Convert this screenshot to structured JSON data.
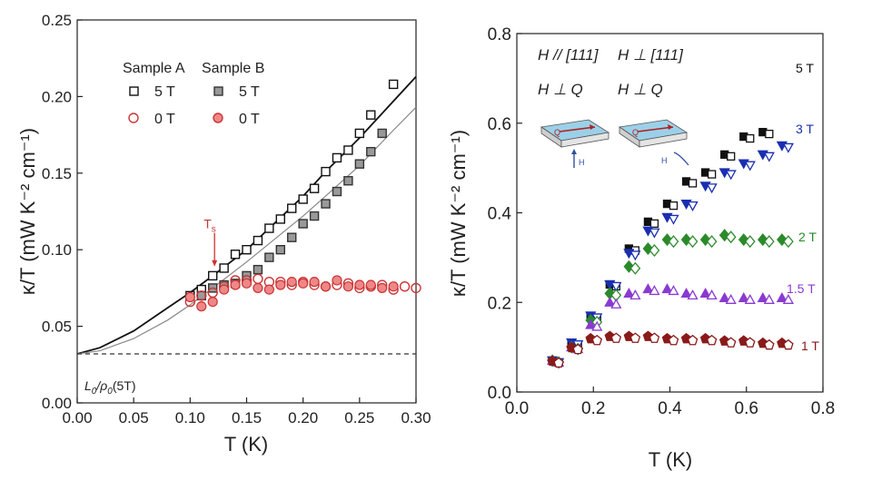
{
  "chart_data": [
    {
      "type": "scatter",
      "panel": "left",
      "xlabel": "T (K)",
      "ylabel": "κ/T (mW K⁻² cm⁻¹)",
      "xlim": [
        0.0,
        0.3
      ],
      "ylim": [
        0.0,
        0.25
      ],
      "xticks": [
        "0.00",
        "0.05",
        "0.10",
        "0.15",
        "0.20",
        "0.25",
        "0.30"
      ],
      "yticks": [
        "0.00",
        "0.05",
        "0.10",
        "0.15",
        "0.20",
        "0.25"
      ],
      "grid": false,
      "legend": {
        "placement": "top-left",
        "headers": [
          "Sample A",
          "Sample B"
        ],
        "rows": [
          "5 T",
          "0 T"
        ]
      },
      "annotations": {
        "ts_label": "T",
        "ts_sub": "s",
        "ts_x": 0.12,
        "baseline_label": "L",
        "baseline_sub": "0",
        "baseline_label2": "/ρ",
        "baseline_sub2": "0",
        "baseline_label3": "(5T)",
        "baseline_y": 0.032
      },
      "fits": [
        {
          "name": "Sample A fit",
          "color": "#111111",
          "x": [
            0.0,
            0.02,
            0.05,
            0.08,
            0.1,
            0.12,
            0.15,
            0.18,
            0.2,
            0.22,
            0.25,
            0.28,
            0.3
          ],
          "y": [
            0.032,
            0.036,
            0.047,
            0.062,
            0.072,
            0.083,
            0.1,
            0.121,
            0.135,
            0.151,
            0.173,
            0.197,
            0.213
          ]
        },
        {
          "name": "Sample B fit",
          "color": "#888888",
          "x": [
            0.0,
            0.02,
            0.05,
            0.08,
            0.1,
            0.12,
            0.15,
            0.18,
            0.2,
            0.22,
            0.25,
            0.28,
            0.3
          ],
          "y": [
            0.032,
            0.034,
            0.042,
            0.054,
            0.064,
            0.075,
            0.092,
            0.11,
            0.122,
            0.135,
            0.155,
            0.178,
            0.193
          ]
        }
      ],
      "series": [
        {
          "name": "Sample A 5 T",
          "marker": "square-open",
          "color": "#111111",
          "x": [
            0.1,
            0.11,
            0.12,
            0.13,
            0.14,
            0.15,
            0.16,
            0.17,
            0.18,
            0.19,
            0.2,
            0.21,
            0.22,
            0.23,
            0.24,
            0.25,
            0.26,
            0.28
          ],
          "y": [
            0.07,
            0.074,
            0.083,
            0.088,
            0.097,
            0.1,
            0.106,
            0.114,
            0.12,
            0.127,
            0.133,
            0.14,
            0.151,
            0.16,
            0.165,
            0.176,
            0.188,
            0.208
          ]
        },
        {
          "name": "Sample B 5 T",
          "marker": "square-gray",
          "color": "#666666",
          "x": [
            0.11,
            0.12,
            0.13,
            0.14,
            0.15,
            0.16,
            0.17,
            0.18,
            0.19,
            0.2,
            0.21,
            0.22,
            0.23,
            0.24,
            0.25,
            0.26,
            0.27
          ],
          "y": [
            0.07,
            0.075,
            0.077,
            0.078,
            0.083,
            0.087,
            0.095,
            0.1,
            0.108,
            0.117,
            0.122,
            0.13,
            0.138,
            0.145,
            0.156,
            0.164,
            0.176
          ]
        },
        {
          "name": "Sample A 0 T",
          "marker": "circle-open",
          "color": "#cc3333",
          "x": [
            0.1,
            0.11,
            0.12,
            0.13,
            0.14,
            0.15,
            0.16,
            0.17,
            0.18,
            0.19,
            0.2,
            0.21,
            0.22,
            0.23,
            0.24,
            0.25,
            0.26,
            0.27,
            0.28,
            0.29,
            0.3
          ],
          "y": [
            0.066,
            0.07,
            0.072,
            0.076,
            0.08,
            0.08,
            0.081,
            0.079,
            0.079,
            0.077,
            0.079,
            0.077,
            0.076,
            0.077,
            0.078,
            0.075,
            0.076,
            0.077,
            0.074,
            0.076,
            0.075
          ]
        },
        {
          "name": "Sample B 0 T",
          "marker": "circle-filled",
          "color": "#dd5555",
          "x": [
            0.1,
            0.11,
            0.12,
            0.13,
            0.14,
            0.15,
            0.16,
            0.17,
            0.18,
            0.19,
            0.2,
            0.21,
            0.22,
            0.23,
            0.24,
            0.25,
            0.26,
            0.27,
            0.28
          ],
          "y": [
            0.069,
            0.063,
            0.066,
            0.074,
            0.077,
            0.078,
            0.075,
            0.074,
            0.077,
            0.079,
            0.078,
            0.079,
            0.076,
            0.08,
            0.076,
            0.077,
            0.077,
            0.075,
            0.076
          ]
        }
      ]
    },
    {
      "type": "scatter",
      "panel": "right",
      "xlabel": "T (K)",
      "ylabel": "κ/T (mW K⁻² cm⁻¹)",
      "xlim": [
        0.0,
        0.8
      ],
      "ylim": [
        0.0,
        0.8
      ],
      "xticks": [
        "0.0",
        "0.2",
        "0.4",
        "0.6",
        "0.8"
      ],
      "yticks": [
        "0.0",
        "0.2",
        "0.4",
        "0.6",
        "0.8"
      ],
      "grid": false,
      "legend": {
        "placement": "top-left",
        "col1": [
          "H // [111]",
          "H ⊥ Q"
        ],
        "col2": [
          "H ⊥ [111]",
          "H ⊥ Q"
        ],
        "inset_labels": [
          "Q",
          "H",
          "Q",
          "H"
        ]
      },
      "field_labels": [
        "5 T",
        "3 T",
        "2 T",
        "1.5 T",
        "1 T"
      ],
      "series": [
        {
          "name": "5 T",
          "color": "#111111",
          "x": [
            0.1,
            0.15,
            0.2,
            0.25,
            0.3,
            0.35,
            0.4,
            0.45,
            0.5,
            0.55,
            0.6,
            0.65
          ],
          "y": [
            0.07,
            0.11,
            0.17,
            0.24,
            0.32,
            0.38,
            0.42,
            0.47,
            0.49,
            0.53,
            0.57,
            0.58
          ]
        },
        {
          "name": "3 T",
          "color": "#1a2fb0",
          "x": [
            0.1,
            0.15,
            0.2,
            0.25,
            0.3,
            0.35,
            0.4,
            0.45,
            0.5,
            0.55,
            0.6,
            0.65,
            0.7
          ],
          "y": [
            0.07,
            0.11,
            0.17,
            0.24,
            0.31,
            0.36,
            0.39,
            0.42,
            0.46,
            0.49,
            0.51,
            0.53,
            0.55
          ]
        },
        {
          "name": "2 T",
          "color": "#2a8a2a",
          "x": [
            0.1,
            0.15,
            0.2,
            0.25,
            0.3,
            0.35,
            0.4,
            0.45,
            0.5,
            0.55,
            0.6,
            0.65,
            0.7
          ],
          "y": [
            0.07,
            0.1,
            0.16,
            0.22,
            0.28,
            0.32,
            0.34,
            0.34,
            0.34,
            0.35,
            0.34,
            0.34,
            0.34
          ]
        },
        {
          "name": "1.5 T",
          "color": "#8a3ad0",
          "x": [
            0.1,
            0.15,
            0.2,
            0.25,
            0.3,
            0.35,
            0.4,
            0.45,
            0.5,
            0.55,
            0.6,
            0.65,
            0.7
          ],
          "y": [
            0.07,
            0.1,
            0.15,
            0.2,
            0.22,
            0.23,
            0.23,
            0.22,
            0.22,
            0.21,
            0.21,
            0.21,
            0.21
          ]
        },
        {
          "name": "1 T",
          "color": "#8a1a1a",
          "x": [
            0.1,
            0.15,
            0.2,
            0.25,
            0.3,
            0.35,
            0.4,
            0.45,
            0.5,
            0.55,
            0.6,
            0.65,
            0.7
          ],
          "y": [
            0.07,
            0.1,
            0.12,
            0.125,
            0.125,
            0.125,
            0.12,
            0.12,
            0.12,
            0.115,
            0.115,
            0.11,
            0.11
          ]
        }
      ]
    }
  ]
}
